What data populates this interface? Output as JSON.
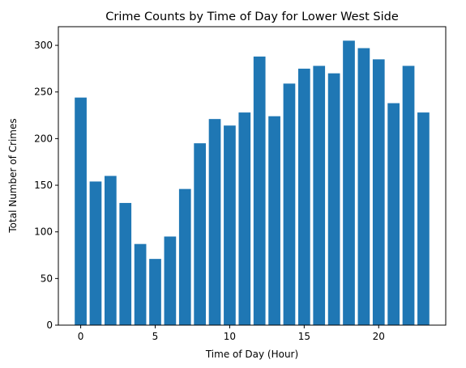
{
  "chart_data": {
    "type": "bar",
    "title": "Crime Counts by Time of Day for Lower West Side",
    "xlabel": "Time of Day (Hour)",
    "ylabel": "Total Number of Crimes",
    "x": [
      0,
      1,
      2,
      3,
      4,
      5,
      6,
      7,
      8,
      9,
      10,
      11,
      12,
      13,
      14,
      15,
      16,
      17,
      18,
      19,
      20,
      21,
      22,
      23
    ],
    "values": [
      244,
      154,
      160,
      131,
      87,
      71,
      95,
      146,
      195,
      221,
      214,
      228,
      288,
      224,
      259,
      275,
      278,
      270,
      305,
      297,
      285,
      238,
      278,
      228
    ],
    "xlim": [
      -1.5,
      24.5
    ],
    "ylim": [
      0,
      320
    ],
    "xticks": [
      0,
      5,
      10,
      15,
      20
    ],
    "yticks": [
      0,
      50,
      100,
      150,
      200,
      250,
      300
    ],
    "bar_color": "#1f77b4",
    "grid": false,
    "legend": null
  }
}
